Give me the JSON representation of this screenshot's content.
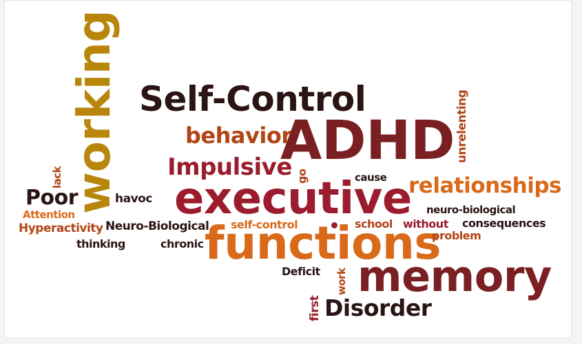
{
  "colors": {
    "dark": "#2a1414",
    "maroon": "#7a1f22",
    "crimson": "#9b1c2c",
    "rust": "#b24516",
    "orange": "#d96a1a",
    "gold": "#b8860b",
    "brown": "#8b4513"
  },
  "words": {
    "working": "working",
    "self_control_big": "Self-Control",
    "behavior": "behavior",
    "adhd": "ADHD",
    "unrelenting": "unrelenting",
    "impulsive": "Impulsive",
    "go": "go",
    "cause": "cause",
    "relationships": "relationships",
    "lack": "lack",
    "poor": "Poor",
    "havoc": "havoc",
    "executive": "executive",
    "attention": "Attention",
    "neuro_biological_lower": "neuro-biological",
    "hyperactivity": "Hyperactivity",
    "neuro_biological_cap": "Neuro-Biological",
    "self_control_small": "self-control",
    "school": "school",
    "without": "without",
    "consequences": "consequences",
    "thinking": "thinking",
    "chronic": "chronic",
    "functions": "functions",
    "problem": "problem",
    "deficit": "Deficit",
    "work": "work",
    "memory": "memory",
    "first": "first",
    "disorder": "Disorder"
  }
}
